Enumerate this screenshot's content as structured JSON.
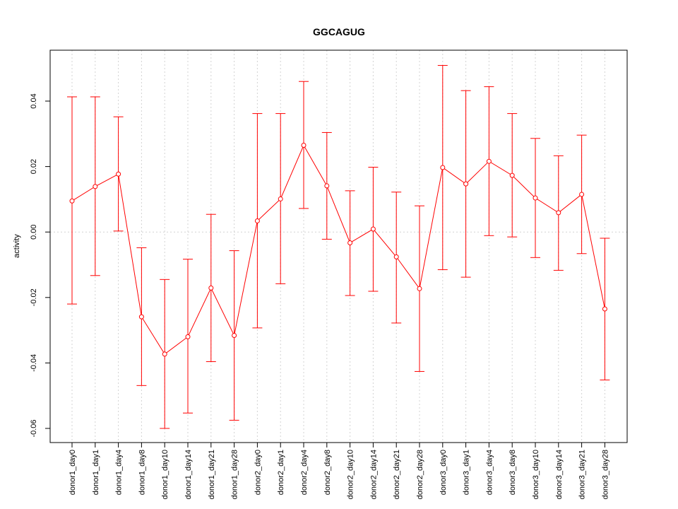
{
  "chart_data": {
    "type": "line",
    "title": "GGCAGUG",
    "xlabel": "",
    "ylabel": "activity",
    "ylim": [
      -0.064,
      0.055
    ],
    "yticks": [
      -0.06,
      -0.04,
      -0.02,
      0.0,
      0.02,
      0.04
    ],
    "ytick_labels": [
      "-0.06",
      "-0.04",
      "-0.02",
      "0.00",
      "0.02",
      "0.04"
    ],
    "grid": true,
    "series_color": "#ff0000",
    "grid_color": "#d3d3d3",
    "categories": [
      "donor1_day0",
      "donor1_day1",
      "donor1_day4",
      "donor1_day8",
      "donor1_day10",
      "donor1_day14",
      "donor1_day21",
      "donor1_day28",
      "donor2_day0",
      "donor2_day1",
      "donor2_day4",
      "donor2_day8",
      "donor2_day10",
      "donor2_day14",
      "donor2_day21",
      "donor2_day28",
      "donor3_day0",
      "donor3_day1",
      "donor3_day4",
      "donor3_day8",
      "donor3_day10",
      "donor3_day14",
      "donor3_day21",
      "donor3_day28"
    ],
    "values": [
      0.0095,
      0.0139,
      0.0177,
      -0.0259,
      -0.0373,
      -0.032,
      -0.0171,
      -0.0316,
      0.0034,
      0.0101,
      0.0265,
      0.0141,
      -0.0033,
      0.0009,
      -0.0076,
      -0.0173,
      0.0197,
      0.0147,
      0.0216,
      0.0173,
      0.0104,
      0.0059,
      0.0115,
      -0.0235
    ],
    "upper": [
      0.0413,
      0.0413,
      0.0352,
      -0.0048,
      -0.0145,
      -0.0083,
      0.0054,
      -0.0057,
      0.0362,
      0.0362,
      0.046,
      0.0304,
      0.0126,
      0.0198,
      0.0122,
      0.008,
      0.0509,
      0.0432,
      0.0444,
      0.0362,
      0.0286,
      0.0233,
      0.0296,
      -0.0019
    ],
    "lower": [
      -0.022,
      -0.0133,
      0.0003,
      -0.0469,
      -0.06,
      -0.0553,
      -0.0396,
      -0.0575,
      -0.0293,
      -0.0158,
      0.0072,
      -0.0022,
      -0.0194,
      -0.0181,
      -0.0278,
      -0.0426,
      -0.0115,
      -0.0138,
      -0.0011,
      -0.0015,
      -0.0078,
      -0.0117,
      -0.0066,
      -0.0452
    ]
  }
}
